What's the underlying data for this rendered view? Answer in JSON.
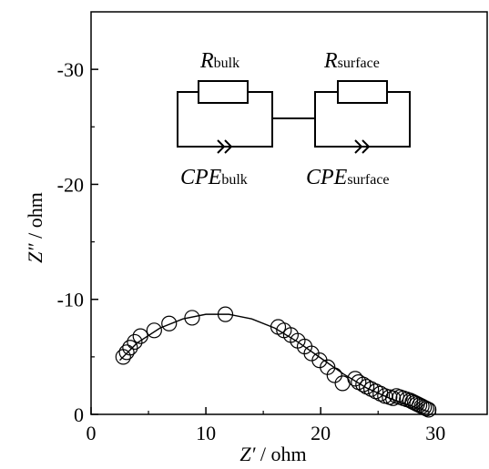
{
  "chart_data": {
    "type": "scatter",
    "xlabel_main": "Z′",
    "xlabel_unit": " / ohm",
    "ylabel_main": "Z″",
    "ylabel_unit": " / ohm",
    "xlim": [
      0,
      34.5
    ],
    "ylim": [
      0,
      -35
    ],
    "x_ticks": [
      0,
      10,
      20,
      30
    ],
    "y_ticks": [
      0,
      -10,
      -20,
      -30
    ],
    "x_tick_labels": [
      "0",
      "10",
      "20",
      "30"
    ],
    "y_tick_labels": [
      "0",
      "-10",
      "-20",
      "-30"
    ],
    "grid": false,
    "series": [
      {
        "style": "open-circles",
        "x": [
          2.8,
          3.1,
          3.4,
          3.8,
          4.3,
          5.5,
          6.8,
          8.8,
          11.7,
          16.3,
          16.8,
          17.4,
          18.0,
          18.6,
          19.2,
          19.9,
          20.6,
          21.2,
          21.9,
          23.0,
          23.3,
          23.7,
          24.0,
          24.4,
          24.8,
          25.2,
          25.6,
          26.0,
          26.3,
          26.6,
          26.9,
          27.2,
          27.5,
          27.8,
          28.0,
          28.2,
          28.4,
          28.6,
          28.8,
          29.0,
          29.2,
          29.4
        ],
        "y": [
          -5.0,
          -5.4,
          -5.8,
          -6.3,
          -6.8,
          -7.3,
          -7.9,
          -8.4,
          -8.7,
          -7.6,
          -7.3,
          -6.9,
          -6.4,
          -5.9,
          -5.3,
          -4.7,
          -4.1,
          -3.4,
          -2.7,
          -3.1,
          -2.8,
          -2.6,
          -2.4,
          -2.2,
          -2.0,
          -1.8,
          -1.6,
          -1.5,
          -1.4,
          -1.6,
          -1.5,
          -1.4,
          -1.3,
          -1.2,
          -1.1,
          -1.0,
          -0.9,
          -0.8,
          -0.7,
          -0.6,
          -0.5,
          -0.4
        ]
      },
      {
        "style": "fit-line",
        "x": [
          2.5,
          4.0,
          6.0,
          8.0,
          10.0,
          12.0,
          14.0,
          16.0,
          18.0,
          20.0,
          22.0,
          24.0,
          26.0,
          28.0,
          29.5
        ],
        "y": [
          -4.7,
          -6.2,
          -7.5,
          -8.3,
          -8.7,
          -8.7,
          -8.3,
          -7.5,
          -6.3,
          -4.9,
          -3.5,
          -2.3,
          -1.4,
          -0.7,
          -0.2
        ]
      }
    ],
    "circuit": {
      "r1_main": "R",
      "r1_sub": "bulk",
      "r2_main": "R",
      "r2_sub": "surface",
      "c1_main": "CPE",
      "c1_sub": "bulk",
      "c2_main": "CPE",
      "c2_sub": "surface"
    }
  }
}
